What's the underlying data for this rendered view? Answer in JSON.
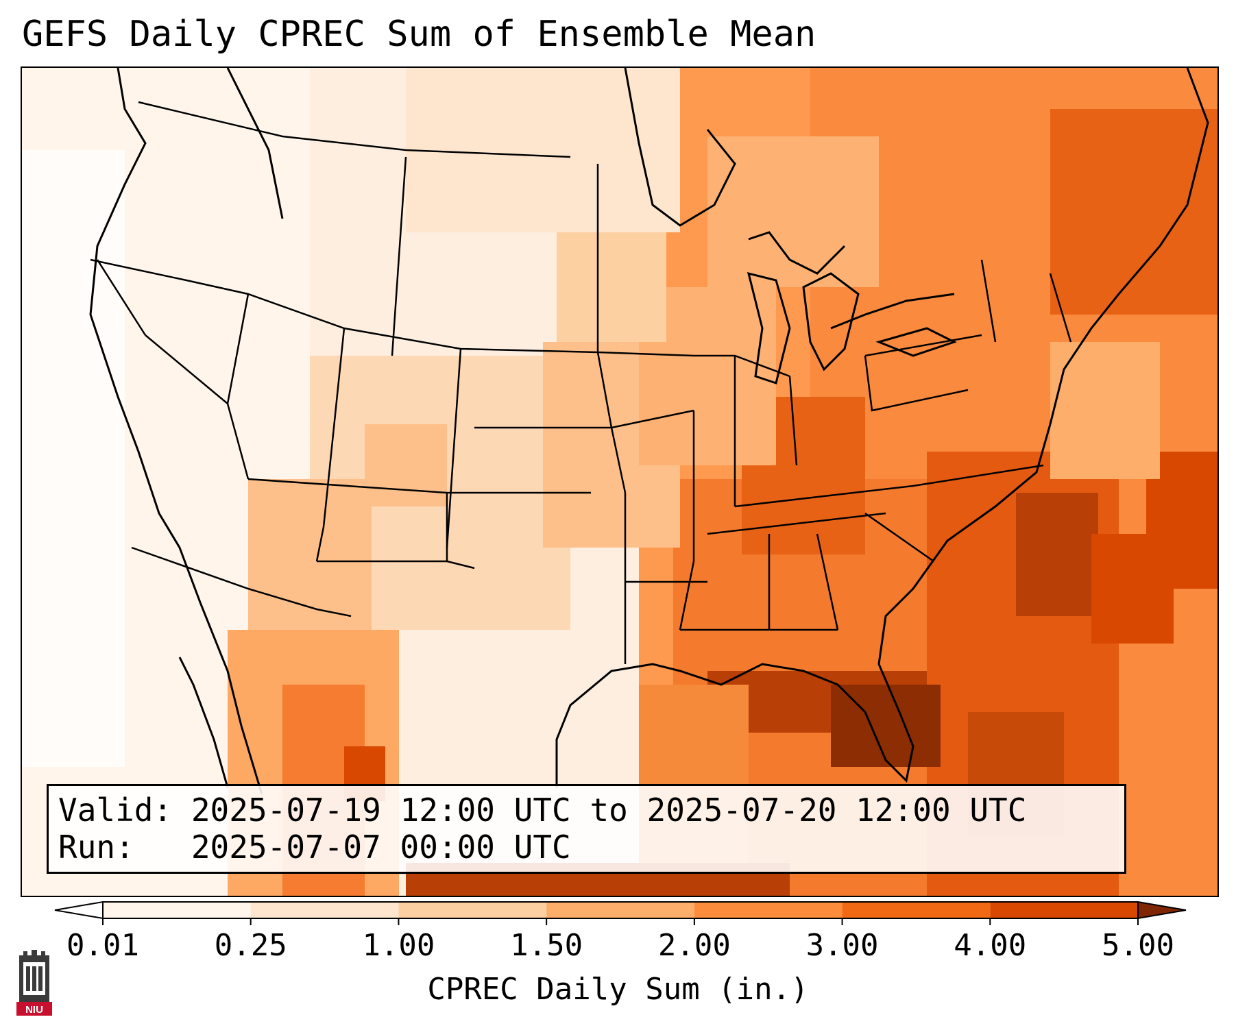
{
  "title": "GEFS Daily CPREC Sum of Ensemble Mean",
  "info": {
    "valid_line": "Valid: 2025-07-19 12:00 UTC to 2025-07-20 12:00 UTC",
    "run_line": "Run:   2025-07-07 00:00 UTC"
  },
  "colorbar": {
    "label": "CPREC Daily Sum (in.)",
    "ticks": [
      "0.01",
      "0.25",
      "1.00",
      "1.50",
      "2.00",
      "3.00",
      "4.00",
      "5.00"
    ],
    "colors": [
      "#fff5eb",
      "#fee6ce",
      "#fdd0a2",
      "#fdae6b",
      "#fd8d3c",
      "#f16913",
      "#d94801",
      "#8c2d04"
    ],
    "under_color": "#ffffff",
    "over_color": "#7f2704"
  },
  "logo": {
    "text": "NIU",
    "icon": "niu-castle-logo-icon",
    "color": "#c8102e"
  }
}
